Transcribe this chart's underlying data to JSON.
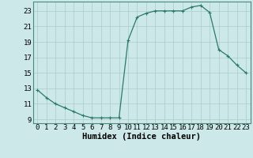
{
  "x": [
    0,
    1,
    2,
    3,
    4,
    5,
    6,
    7,
    8,
    9,
    10,
    11,
    12,
    13,
    14,
    15,
    16,
    17,
    18,
    19,
    20,
    21,
    22,
    23
  ],
  "y": [
    12.8,
    11.8,
    11.0,
    10.5,
    10.0,
    9.5,
    9.2,
    9.2,
    9.2,
    9.2,
    19.2,
    22.2,
    22.7,
    23.0,
    23.0,
    23.0,
    23.0,
    23.5,
    23.7,
    22.8,
    18.0,
    17.2,
    16.0,
    15.0
  ],
  "line_color": "#2a7a6a",
  "marker": "+",
  "marker_color": "#2a7a6a",
  "bg_color": "#cce8e8",
  "grid_color": "#aacccc",
  "xlabel": "Humidex (Indice chaleur)",
  "xlabel_fontsize": 7.5,
  "xtick_labels": [
    "0",
    "1",
    "2",
    "3",
    "4",
    "5",
    "6",
    "7",
    "8",
    "9",
    "10",
    "11",
    "12",
    "13",
    "14",
    "15",
    "16",
    "17",
    "18",
    "19",
    "20",
    "21",
    "22",
    "23"
  ],
  "ytick_labels": [
    "9",
    "11",
    "13",
    "15",
    "17",
    "19",
    "21",
    "23"
  ],
  "yticks": [
    9,
    11,
    13,
    15,
    17,
    19,
    21,
    23
  ],
  "xlim": [
    -0.5,
    23.5
  ],
  "ylim": [
    8.5,
    24.2
  ],
  "tick_fontsize": 6.5
}
